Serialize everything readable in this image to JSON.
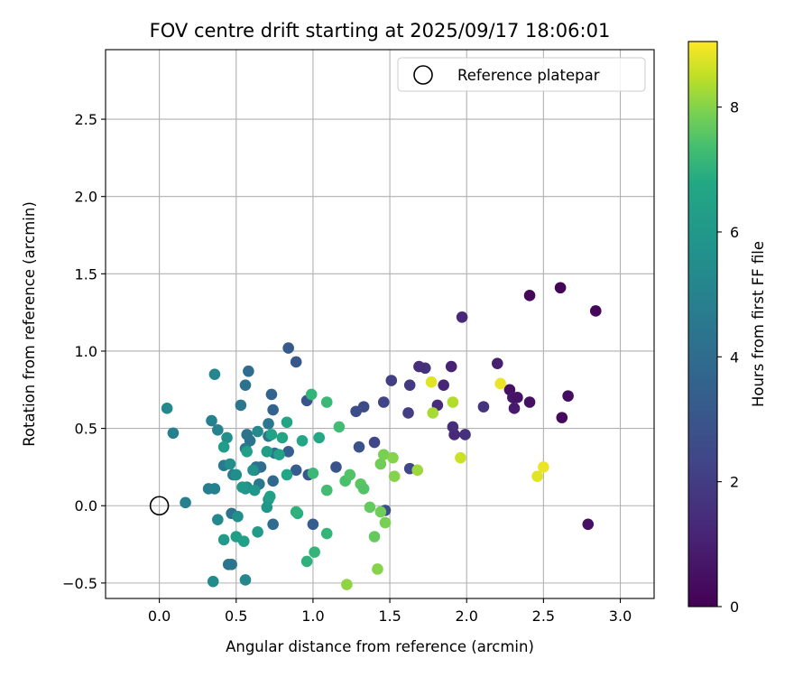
{
  "chart_data": {
    "type": "scatter",
    "title": "FOV centre drift starting at 2025/09/17 18:06:01",
    "xlabel": "Angular distance from reference (arcmin)",
    "ylabel": "Rotation from reference (arcmin)",
    "xlim": [
      -0.35,
      3.22
    ],
    "ylim": [
      -0.6,
      2.95
    ],
    "xticks": [
      0.0,
      0.5,
      1.0,
      1.5,
      2.0,
      2.5,
      3.0
    ],
    "xtick_labels": [
      "0.0",
      "0.5",
      "1.0",
      "1.5",
      "2.0",
      "2.5",
      "3.0"
    ],
    "yticks": [
      -0.5,
      0.0,
      0.5,
      1.0,
      1.5,
      2.0,
      2.5
    ],
    "ytick_labels": [
      "−0.5",
      "0.0",
      "0.5",
      "1.0",
      "1.5",
      "2.0",
      "2.5"
    ],
    "grid": true,
    "legend": {
      "position": "top-right",
      "entries": [
        "Reference platepar"
      ]
    },
    "reference_point": {
      "x": 0.0,
      "y": 0.0,
      "label": "Reference platepar"
    },
    "colorbar": {
      "label": "Hours from first FF file",
      "colormap": "viridis",
      "range": [
        0,
        9.05
      ],
      "ticks": [
        0,
        2,
        4,
        6,
        8
      ],
      "tick_labels": [
        "0",
        "2",
        "4",
        "6",
        "8"
      ]
    },
    "points": [
      {
        "x": 2.41,
        "y": 1.36,
        "h": 0.2
      },
      {
        "x": 2.61,
        "y": 1.41,
        "h": 0.1
      },
      {
        "x": 2.84,
        "y": 1.26,
        "h": 0.2
      },
      {
        "x": 2.79,
        "y": -0.12,
        "h": 0.5
      },
      {
        "x": 2.62,
        "y": 0.57,
        "h": 0.3
      },
      {
        "x": 2.66,
        "y": 0.71,
        "h": 0.4
      },
      {
        "x": 2.41,
        "y": 0.67,
        "h": 0.5
      },
      {
        "x": 2.28,
        "y": 0.75,
        "h": 0.5
      },
      {
        "x": 2.3,
        "y": 0.7,
        "h": 0.7
      },
      {
        "x": 2.33,
        "y": 0.7,
        "h": 0.6
      },
      {
        "x": 2.31,
        "y": 0.63,
        "h": 0.8
      },
      {
        "x": 2.2,
        "y": 0.92,
        "h": 1.0
      },
      {
        "x": 1.97,
        "y": 1.22,
        "h": 1.3
      },
      {
        "x": 2.11,
        "y": 0.64,
        "h": 1.7
      },
      {
        "x": 1.99,
        "y": 0.46,
        "h": 1.6
      },
      {
        "x": 1.92,
        "y": 0.46,
        "h": 1.3
      },
      {
        "x": 1.91,
        "y": 0.51,
        "h": 1.5
      },
      {
        "x": 1.9,
        "y": 0.9,
        "h": 1.1
      },
      {
        "x": 1.85,
        "y": 0.78,
        "h": 1.2
      },
      {
        "x": 1.81,
        "y": 0.65,
        "h": 1.4
      },
      {
        "x": 1.73,
        "y": 0.89,
        "h": 1.6
      },
      {
        "x": 1.69,
        "y": 0.9,
        "h": 1.5
      },
      {
        "x": 1.63,
        "y": 0.78,
        "h": 1.9
      },
      {
        "x": 1.62,
        "y": 0.6,
        "h": 2.0
      },
      {
        "x": 1.51,
        "y": 0.81,
        "h": 2.1
      },
      {
        "x": 1.46,
        "y": 0.67,
        "h": 2.3
      },
      {
        "x": 1.63,
        "y": 0.24,
        "h": 2.4
      },
      {
        "x": 1.4,
        "y": 0.41,
        "h": 2.4
      },
      {
        "x": 1.33,
        "y": 0.64,
        "h": 2.6
      },
      {
        "x": 1.28,
        "y": 0.61,
        "h": 2.7
      },
      {
        "x": 1.3,
        "y": 0.38,
        "h": 2.9
      },
      {
        "x": 1.47,
        "y": -0.03,
        "h": 2.7
      },
      {
        "x": 1.15,
        "y": 0.25,
        "h": 2.9
      },
      {
        "x": 0.96,
        "y": 0.68,
        "h": 3.0
      },
      {
        "x": 0.97,
        "y": 0.2,
        "h": 3.0
      },
      {
        "x": 0.89,
        "y": 0.93,
        "h": 3.1
      },
      {
        "x": 0.84,
        "y": 1.02,
        "h": 3.2
      },
      {
        "x": 0.89,
        "y": 0.23,
        "h": 3.3
      },
      {
        "x": 1.0,
        "y": -0.12,
        "h": 3.3
      },
      {
        "x": 0.84,
        "y": 0.35,
        "h": 3.4
      },
      {
        "x": 0.74,
        "y": 0.62,
        "h": 3.5
      },
      {
        "x": 0.73,
        "y": 0.72,
        "h": 3.6
      },
      {
        "x": 0.74,
        "y": 0.16,
        "h": 3.8
      },
      {
        "x": 0.74,
        "y": -0.12,
        "h": 4.0
      },
      {
        "x": 0.58,
        "y": 0.87,
        "h": 4.0
      },
      {
        "x": 0.56,
        "y": 0.78,
        "h": 4.2
      },
      {
        "x": 0.66,
        "y": 0.25,
        "h": 4.0
      },
      {
        "x": 0.63,
        "y": 0.25,
        "h": 4.1
      },
      {
        "x": 0.62,
        "y": 0.23,
        "h": 4.2
      },
      {
        "x": 0.57,
        "y": 0.46,
        "h": 4.3
      },
      {
        "x": 0.59,
        "y": 0.42,
        "h": 4.3
      },
      {
        "x": 0.71,
        "y": 0.45,
        "h": 4.4
      },
      {
        "x": 0.71,
        "y": 0.53,
        "h": 4.5
      },
      {
        "x": 0.75,
        "y": 0.34,
        "h": 4.3
      },
      {
        "x": 0.65,
        "y": 0.14,
        "h": 4.5
      },
      {
        "x": 0.47,
        "y": -0.05,
        "h": 4.2
      },
      {
        "x": 0.45,
        "y": -0.38,
        "h": 4.3
      },
      {
        "x": 0.47,
        "y": -0.38,
        "h": 4.4
      },
      {
        "x": 0.53,
        "y": 0.65,
        "h": 4.5
      },
      {
        "x": 0.42,
        "y": 0.26,
        "h": 4.6
      },
      {
        "x": 0.48,
        "y": 0.2,
        "h": 4.7
      },
      {
        "x": 0.56,
        "y": 0.37,
        "h": 4.6
      },
      {
        "x": 0.32,
        "y": 0.11,
        "h": 4.8
      },
      {
        "x": 0.36,
        "y": 0.11,
        "h": 4.9
      },
      {
        "x": 0.34,
        "y": 0.55,
        "h": 4.9
      },
      {
        "x": 0.38,
        "y": 0.49,
        "h": 5.0
      },
      {
        "x": 0.09,
        "y": 0.47,
        "h": 4.9
      },
      {
        "x": 0.17,
        "y": 0.02,
        "h": 4.9
      },
      {
        "x": 0.36,
        "y": 0.85,
        "h": 5.2
      },
      {
        "x": 0.05,
        "y": 0.63,
        "h": 5.3
      },
      {
        "x": 0.35,
        "y": -0.49,
        "h": 5.4
      },
      {
        "x": 0.56,
        "y": -0.48,
        "h": 5.2
      },
      {
        "x": 0.38,
        "y": -0.09,
        "h": 5.3
      },
      {
        "x": 0.64,
        "y": 0.48,
        "h": 5.4
      },
      {
        "x": 0.5,
        "y": 0.2,
        "h": 5.5
      },
      {
        "x": 0.57,
        "y": 0.12,
        "h": 5.4
      },
      {
        "x": 0.44,
        "y": 0.44,
        "h": 5.6
      },
      {
        "x": 0.46,
        "y": 0.27,
        "h": 5.6
      },
      {
        "x": 0.51,
        "y": -0.07,
        "h": 5.6
      },
      {
        "x": 0.56,
        "y": 0.11,
        "h": 5.8
      },
      {
        "x": 0.54,
        "y": 0.12,
        "h": 6.0
      },
      {
        "x": 0.61,
        "y": 0.23,
        "h": 5.7
      },
      {
        "x": 0.62,
        "y": 0.1,
        "h": 5.9
      },
      {
        "x": 0.71,
        "y": 0.04,
        "h": 6.0
      },
      {
        "x": 0.7,
        "y": -0.01,
        "h": 5.9
      },
      {
        "x": 0.64,
        "y": -0.17,
        "h": 6.1
      },
      {
        "x": 0.42,
        "y": 0.38,
        "h": 6.2
      },
      {
        "x": 0.42,
        "y": -0.22,
        "h": 6.1
      },
      {
        "x": 0.5,
        "y": -0.2,
        "h": 6.3
      },
      {
        "x": 0.55,
        "y": -0.23,
        "h": 6.4
      },
      {
        "x": 0.72,
        "y": 0.06,
        "h": 6.4
      },
      {
        "x": 0.7,
        "y": 0.35,
        "h": 6.3
      },
      {
        "x": 0.57,
        "y": 0.35,
        "h": 6.4
      },
      {
        "x": 0.78,
        "y": 0.33,
        "h": 6.5
      },
      {
        "x": 0.73,
        "y": 0.46,
        "h": 6.5
      },
      {
        "x": 0.8,
        "y": 0.44,
        "h": 6.6
      },
      {
        "x": 0.83,
        "y": 0.54,
        "h": 6.6
      },
      {
        "x": 0.83,
        "y": 0.2,
        "h": 6.7
      },
      {
        "x": 0.93,
        "y": 0.42,
        "h": 6.7
      },
      {
        "x": 1.04,
        "y": 0.44,
        "h": 6.8
      },
      {
        "x": 0.9,
        "y": -0.05,
        "h": 6.9
      },
      {
        "x": 0.89,
        "y": -0.04,
        "h": 7.0
      },
      {
        "x": 0.96,
        "y": -0.36,
        "h": 7.0
      },
      {
        "x": 1.01,
        "y": -0.3,
        "h": 7.1
      },
      {
        "x": 1.09,
        "y": -0.18,
        "h": 7.1
      },
      {
        "x": 0.99,
        "y": 0.72,
        "h": 7.1
      },
      {
        "x": 1.0,
        "y": 0.21,
        "h": 7.2
      },
      {
        "x": 1.09,
        "y": 0.67,
        "h": 7.2
      },
      {
        "x": 1.09,
        "y": 0.1,
        "h": 7.3
      },
      {
        "x": 1.17,
        "y": 0.51,
        "h": 7.3
      },
      {
        "x": 1.21,
        "y": 0.16,
        "h": 7.4
      },
      {
        "x": 1.24,
        "y": 0.2,
        "h": 7.5
      },
      {
        "x": 1.31,
        "y": 0.14,
        "h": 7.6
      },
      {
        "x": 1.33,
        "y": 0.11,
        "h": 7.5
      },
      {
        "x": 1.37,
        "y": -0.01,
        "h": 7.7
      },
      {
        "x": 1.4,
        "y": -0.2,
        "h": 7.7
      },
      {
        "x": 1.44,
        "y": -0.04,
        "h": 7.8
      },
      {
        "x": 1.44,
        "y": 0.27,
        "h": 7.8
      },
      {
        "x": 1.46,
        "y": 0.33,
        "h": 7.9
      },
      {
        "x": 1.47,
        "y": -0.11,
        "h": 7.9
      },
      {
        "x": 1.52,
        "y": 0.31,
        "h": 8.0
      },
      {
        "x": 1.53,
        "y": 0.19,
        "h": 8.0
      },
      {
        "x": 1.22,
        "y": -0.51,
        "h": 8.1
      },
      {
        "x": 1.42,
        "y": -0.41,
        "h": 8.0
      },
      {
        "x": 1.68,
        "y": 0.23,
        "h": 8.2
      },
      {
        "x": 1.78,
        "y": 0.6,
        "h": 8.3
      },
      {
        "x": 1.91,
        "y": 0.67,
        "h": 8.4
      },
      {
        "x": 1.96,
        "y": 0.31,
        "h": 8.6
      },
      {
        "x": 1.77,
        "y": 0.8,
        "h": 8.8
      },
      {
        "x": 2.22,
        "y": 0.79,
        "h": 8.9
      },
      {
        "x": 2.46,
        "y": 0.19,
        "h": 8.8
      },
      {
        "x": 2.5,
        "y": 0.25,
        "h": 8.9
      }
    ]
  }
}
